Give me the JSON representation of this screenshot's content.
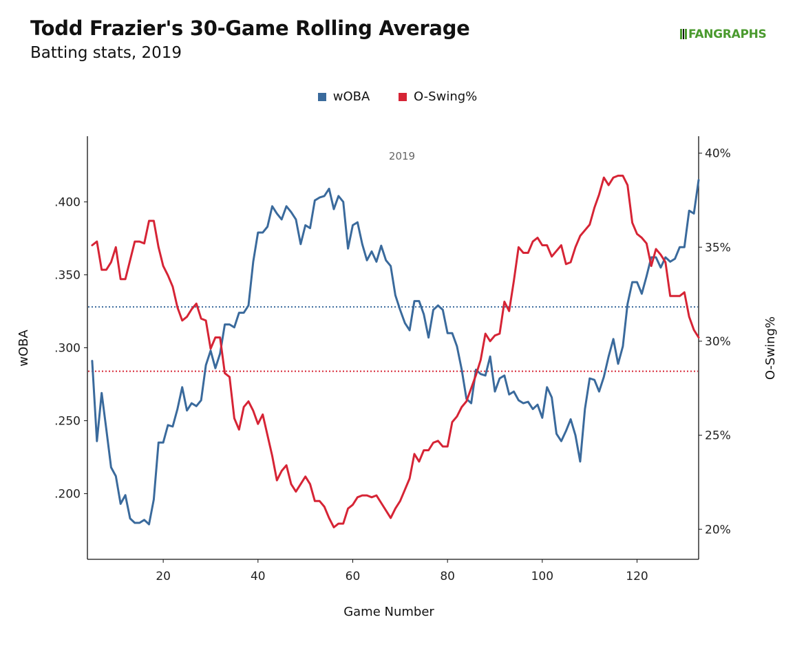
{
  "header": {
    "title": "Todd Frazier's 30-Game Rolling Average",
    "subtitle": "Batting stats, 2019",
    "logo_text": "FANGRAPHS"
  },
  "chart_data": {
    "type": "line",
    "panel_label": "2019",
    "xlabel": "Game Number",
    "ylabel_left": "wOBA",
    "ylabel_right": "O-Swing%",
    "xlim": [
      4,
      133
    ],
    "x_ticks": [
      20,
      40,
      60,
      80,
      100,
      120
    ],
    "y_left": {
      "lim": [
        0.155,
        0.445
      ],
      "ticks": [
        0.2,
        0.25,
        0.3,
        0.35,
        0.4
      ],
      "tick_labels": [
        ".200",
        ".250",
        ".300",
        ".350",
        ".400"
      ]
    },
    "y_right": {
      "lim": [
        18.4,
        40.9
      ],
      "ticks": [
        20,
        25,
        30,
        35,
        40
      ],
      "tick_labels": [
        "20%",
        "25%",
        "30%",
        "35%",
        "40%"
      ]
    },
    "reference_lines": [
      {
        "series": "wOBA",
        "value": 0.328,
        "style": "dotted",
        "color": "#3a6a9c"
      },
      {
        "series": "O-Swing%",
        "value": 28.4,
        "style": "dotted",
        "color": "#d62435"
      }
    ],
    "grid": false,
    "legend_position": "top-center",
    "series": [
      {
        "name": "wOBA",
        "axis": "left",
        "color": "#3a6a9c",
        "x": [
          5,
          6,
          7,
          8,
          9,
          10,
          11,
          12,
          13,
          14,
          15,
          16,
          17,
          18,
          19,
          20,
          21,
          22,
          23,
          24,
          25,
          26,
          27,
          28,
          29,
          30,
          31,
          32,
          33,
          34,
          35,
          36,
          37,
          38,
          39,
          40,
          41,
          42,
          43,
          44,
          45,
          46,
          47,
          48,
          49,
          50,
          51,
          52,
          53,
          54,
          55,
          56,
          57,
          58,
          59,
          60,
          61,
          62,
          63,
          64,
          65,
          66,
          67,
          68,
          69,
          70,
          71,
          72,
          73,
          74,
          75,
          76,
          77,
          78,
          79,
          80,
          81,
          82,
          83,
          84,
          85,
          86,
          87,
          88,
          89,
          90,
          91,
          92,
          93,
          94,
          95,
          96,
          97,
          98,
          99,
          100,
          101,
          102,
          103,
          104,
          105,
          106,
          107,
          108,
          109,
          110,
          111,
          112,
          113,
          114,
          115,
          116,
          117,
          118,
          119,
          120,
          121,
          122,
          123,
          124,
          125,
          126,
          127,
          128,
          129,
          130,
          131,
          132,
          133
        ],
        "values": [
          0.291,
          0.236,
          0.269,
          0.244,
          0.218,
          0.212,
          0.193,
          0.199,
          0.183,
          0.18,
          0.18,
          0.182,
          0.179,
          0.196,
          0.235,
          0.235,
          0.247,
          0.246,
          0.258,
          0.273,
          0.257,
          0.262,
          0.26,
          0.264,
          0.288,
          0.298,
          0.286,
          0.296,
          0.316,
          0.316,
          0.314,
          0.324,
          0.324,
          0.329,
          0.359,
          0.379,
          0.379,
          0.383,
          0.397,
          0.392,
          0.388,
          0.397,
          0.393,
          0.388,
          0.371,
          0.384,
          0.382,
          0.401,
          0.403,
          0.404,
          0.409,
          0.395,
          0.404,
          0.4,
          0.368,
          0.384,
          0.386,
          0.371,
          0.36,
          0.366,
          0.359,
          0.37,
          0.36,
          0.356,
          0.336,
          0.326,
          0.317,
          0.312,
          0.332,
          0.332,
          0.323,
          0.307,
          0.326,
          0.329,
          0.326,
          0.31,
          0.31,
          0.301,
          0.285,
          0.265,
          0.262,
          0.285,
          0.282,
          0.281,
          0.294,
          0.27,
          0.279,
          0.281,
          0.268,
          0.27,
          0.264,
          0.262,
          0.263,
          0.258,
          0.261,
          0.252,
          0.273,
          0.266,
          0.241,
          0.236,
          0.243,
          0.251,
          0.24,
          0.222,
          0.258,
          0.279,
          0.278,
          0.27,
          0.28,
          0.294,
          0.306,
          0.289,
          0.301,
          0.33,
          0.345,
          0.345,
          0.337,
          0.349,
          0.362,
          0.362,
          0.355,
          0.362,
          0.359,
          0.361,
          0.369,
          0.369,
          0.394,
          0.392,
          0.415
        ]
      },
      {
        "name": "O-Swing%",
        "axis": "right",
        "color": "#d62435",
        "x": [
          5,
          6,
          7,
          8,
          9,
          10,
          11,
          12,
          13,
          14,
          15,
          16,
          17,
          18,
          19,
          20,
          21,
          22,
          23,
          24,
          25,
          26,
          27,
          28,
          29,
          30,
          31,
          32,
          33,
          34,
          35,
          36,
          37,
          38,
          39,
          40,
          41,
          42,
          43,
          44,
          45,
          46,
          47,
          48,
          49,
          50,
          51,
          52,
          53,
          54,
          55,
          56,
          57,
          58,
          59,
          60,
          61,
          62,
          63,
          64,
          65,
          66,
          67,
          68,
          69,
          70,
          71,
          72,
          73,
          74,
          75,
          76,
          77,
          78,
          79,
          80,
          81,
          82,
          83,
          84,
          85,
          86,
          87,
          88,
          89,
          90,
          91,
          92,
          93,
          94,
          95,
          96,
          97,
          98,
          99,
          100,
          101,
          102,
          103,
          104,
          105,
          106,
          107,
          108,
          109,
          110,
          111,
          112,
          113,
          114,
          115,
          116,
          117,
          118,
          119,
          120,
          121,
          122,
          123,
          124,
          125,
          126,
          127,
          128,
          129,
          130,
          131,
          132,
          133
        ],
        "values": [
          35.1,
          35.3,
          33.8,
          33.8,
          34.2,
          35.0,
          33.3,
          33.3,
          34.3,
          35.3,
          35.3,
          35.2,
          36.4,
          36.4,
          35.0,
          34.0,
          33.5,
          32.9,
          31.8,
          31.1,
          31.3,
          31.7,
          32.0,
          31.2,
          31.1,
          29.6,
          30.2,
          30.2,
          28.3,
          28.1,
          25.9,
          25.3,
          26.5,
          26.8,
          26.3,
          25.6,
          26.1,
          25.0,
          23.9,
          22.6,
          23.1,
          23.4,
          22.4,
          22.0,
          22.4,
          22.8,
          22.4,
          21.5,
          21.5,
          21.2,
          20.6,
          20.1,
          20.3,
          20.3,
          21.1,
          21.3,
          21.7,
          21.8,
          21.8,
          21.7,
          21.8,
          21.4,
          21.0,
          20.6,
          21.1,
          21.5,
          22.1,
          22.7,
          24.0,
          23.6,
          24.2,
          24.2,
          24.6,
          24.7,
          24.4,
          24.4,
          25.7,
          26.0,
          26.5,
          26.8,
          27.5,
          28.2,
          29.0,
          30.4,
          30.0,
          30.3,
          30.4,
          32.1,
          31.6,
          33.2,
          35.0,
          34.7,
          34.7,
          35.3,
          35.5,
          35.1,
          35.1,
          34.5,
          34.8,
          35.1,
          34.1,
          34.2,
          35.0,
          35.6,
          35.9,
          36.2,
          37.1,
          37.8,
          38.7,
          38.3,
          38.7,
          38.8,
          38.8,
          38.3,
          36.3,
          35.7,
          35.5,
          35.2,
          34.0,
          34.9,
          34.6,
          34.2,
          32.4,
          32.4,
          32.4,
          32.6,
          31.3,
          30.6,
          30.2
        ]
      }
    ]
  }
}
